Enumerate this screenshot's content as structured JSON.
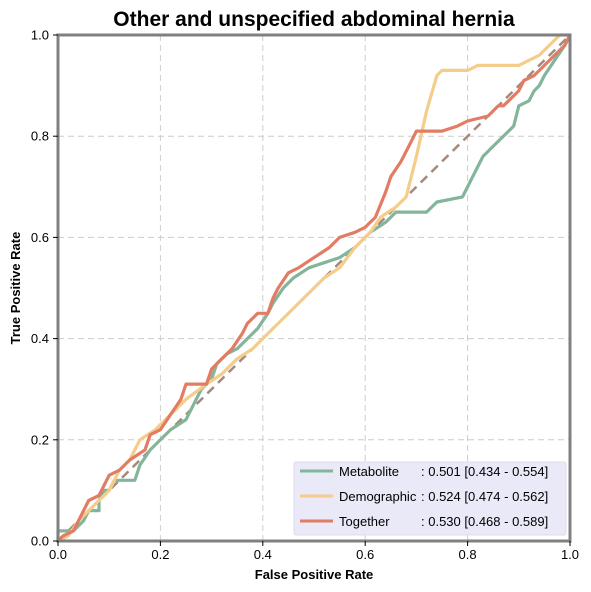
{
  "chart_data": {
    "type": "line",
    "title": "Other and unspecified abdominal hernia",
    "xlabel": "False Positive Rate",
    "ylabel": "True Positive Rate",
    "xlim": [
      0,
      1
    ],
    "ylim": [
      0,
      1
    ],
    "xticks": [
      "0.0",
      "0.2",
      "0.4",
      "0.6",
      "0.8",
      "1.0"
    ],
    "yticks": [
      "0.0",
      "0.2",
      "0.4",
      "0.6",
      "0.8",
      "1.0"
    ],
    "grid": true,
    "legend_position": "lower-right",
    "series": [
      {
        "name": "Metabolite",
        "name_padded": "Metabolite     ",
        "auc_text": ": 0.501 [0.434 - 0.554]",
        "color": "#82b59a",
        "points": [
          [
            0,
            0
          ],
          [
            0,
            0.02
          ],
          [
            0.03,
            0.02
          ],
          [
            0.05,
            0.04
          ],
          [
            0.06,
            0.06
          ],
          [
            0.08,
            0.06
          ],
          [
            0.08,
            0.08
          ],
          [
            0.09,
            0.1
          ],
          [
            0.1,
            0.1
          ],
          [
            0.11,
            0.12
          ],
          [
            0.15,
            0.12
          ],
          [
            0.16,
            0.15
          ],
          [
            0.18,
            0.18
          ],
          [
            0.2,
            0.2
          ],
          [
            0.22,
            0.22
          ],
          [
            0.25,
            0.24
          ],
          [
            0.27,
            0.28
          ],
          [
            0.28,
            0.3
          ],
          [
            0.3,
            0.32
          ],
          [
            0.31,
            0.35
          ],
          [
            0.33,
            0.37
          ],
          [
            0.35,
            0.38
          ],
          [
            0.37,
            0.4
          ],
          [
            0.39,
            0.42
          ],
          [
            0.41,
            0.45
          ],
          [
            0.42,
            0.47
          ],
          [
            0.44,
            0.5
          ],
          [
            0.46,
            0.52
          ],
          [
            0.49,
            0.54
          ],
          [
            0.52,
            0.55
          ],
          [
            0.55,
            0.56
          ],
          [
            0.58,
            0.58
          ],
          [
            0.61,
            0.61
          ],
          [
            0.64,
            0.63
          ],
          [
            0.66,
            0.65
          ],
          [
            0.72,
            0.65
          ],
          [
            0.74,
            0.67
          ],
          [
            0.79,
            0.68
          ],
          [
            0.81,
            0.72
          ],
          [
            0.83,
            0.76
          ],
          [
            0.85,
            0.78
          ],
          [
            0.87,
            0.8
          ],
          [
            0.89,
            0.82
          ],
          [
            0.9,
            0.86
          ],
          [
            0.92,
            0.87
          ],
          [
            0.93,
            0.89
          ],
          [
            0.94,
            0.9
          ],
          [
            0.95,
            0.92
          ],
          [
            0.97,
            0.95
          ],
          [
            0.99,
            0.98
          ],
          [
            1,
            1
          ]
        ]
      },
      {
        "name": "Demographic",
        "name_padded": "Demographic",
        "auc_text": ": 0.524 [0.474 - 0.562]",
        "color": "#f5cd8a",
        "points": [
          [
            0,
            0
          ],
          [
            0.02,
            0.01
          ],
          [
            0.04,
            0.04
          ],
          [
            0.06,
            0.06
          ],
          [
            0.08,
            0.08
          ],
          [
            0.1,
            0.1
          ],
          [
            0.12,
            0.14
          ],
          [
            0.14,
            0.16
          ],
          [
            0.16,
            0.2
          ],
          [
            0.19,
            0.22
          ],
          [
            0.22,
            0.25
          ],
          [
            0.25,
            0.28
          ],
          [
            0.29,
            0.31
          ],
          [
            0.32,
            0.33
          ],
          [
            0.35,
            0.36
          ],
          [
            0.38,
            0.38
          ],
          [
            0.4,
            0.4
          ],
          [
            0.42,
            0.42
          ],
          [
            0.44,
            0.44
          ],
          [
            0.46,
            0.46
          ],
          [
            0.48,
            0.48
          ],
          [
            0.5,
            0.5
          ],
          [
            0.52,
            0.52
          ],
          [
            0.55,
            0.54
          ],
          [
            0.58,
            0.58
          ],
          [
            0.61,
            0.61
          ],
          [
            0.63,
            0.64
          ],
          [
            0.66,
            0.66
          ],
          [
            0.68,
            0.68
          ],
          [
            0.7,
            0.76
          ],
          [
            0.72,
            0.85
          ],
          [
            0.74,
            0.92
          ],
          [
            0.75,
            0.93
          ],
          [
            0.8,
            0.93
          ],
          [
            0.82,
            0.94
          ],
          [
            0.9,
            0.94
          ],
          [
            0.94,
            0.96
          ],
          [
            0.96,
            0.98
          ],
          [
            0.98,
            1
          ],
          [
            1,
            1
          ]
        ]
      },
      {
        "name": "Together",
        "name_padded": "Together       ",
        "auc_text": ": 0.530 [0.468 - 0.589]",
        "color": "#e27c64",
        "points": [
          [
            0,
            0
          ],
          [
            0.01,
            0.01
          ],
          [
            0.03,
            0.02
          ],
          [
            0.04,
            0.04
          ],
          [
            0.05,
            0.06
          ],
          [
            0.06,
            0.08
          ],
          [
            0.08,
            0.09
          ],
          [
            0.09,
            0.11
          ],
          [
            0.1,
            0.13
          ],
          [
            0.12,
            0.14
          ],
          [
            0.14,
            0.16
          ],
          [
            0.17,
            0.18
          ],
          [
            0.18,
            0.21
          ],
          [
            0.2,
            0.22
          ],
          [
            0.22,
            0.25
          ],
          [
            0.24,
            0.28
          ],
          [
            0.25,
            0.31
          ],
          [
            0.29,
            0.31
          ],
          [
            0.3,
            0.34
          ],
          [
            0.32,
            0.36
          ],
          [
            0.34,
            0.38
          ],
          [
            0.36,
            0.41
          ],
          [
            0.37,
            0.43
          ],
          [
            0.39,
            0.45
          ],
          [
            0.41,
            0.45
          ],
          [
            0.42,
            0.48
          ],
          [
            0.43,
            0.5
          ],
          [
            0.45,
            0.53
          ],
          [
            0.47,
            0.54
          ],
          [
            0.5,
            0.56
          ],
          [
            0.53,
            0.58
          ],
          [
            0.55,
            0.6
          ],
          [
            0.58,
            0.61
          ],
          [
            0.6,
            0.62
          ],
          [
            0.62,
            0.64
          ],
          [
            0.64,
            0.69
          ],
          [
            0.65,
            0.72
          ],
          [
            0.67,
            0.75
          ],
          [
            0.69,
            0.79
          ],
          [
            0.7,
            0.81
          ],
          [
            0.75,
            0.81
          ],
          [
            0.78,
            0.82
          ],
          [
            0.8,
            0.83
          ],
          [
            0.84,
            0.84
          ],
          [
            0.86,
            0.86
          ],
          [
            0.87,
            0.86
          ],
          [
            0.88,
            0.87
          ],
          [
            0.9,
            0.89
          ],
          [
            0.91,
            0.91
          ],
          [
            0.93,
            0.92
          ],
          [
            0.95,
            0.94
          ],
          [
            0.97,
            0.96
          ],
          [
            0.99,
            0.98
          ],
          [
            1,
            1
          ]
        ]
      }
    ],
    "reference_line": {
      "color": "#a48a7e"
    }
  }
}
